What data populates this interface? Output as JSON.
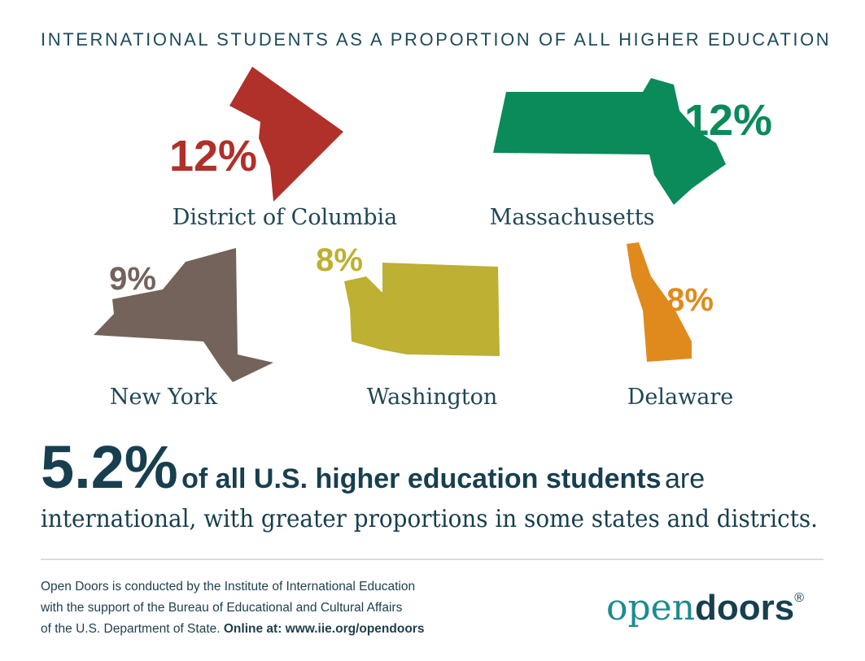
{
  "header": {
    "title": "INTERNATIONAL STUDENTS AS A PROPORTION OF ALL HIGHER EDUCATION"
  },
  "states": [
    {
      "name": "District of Columbia",
      "percent": "12%",
      "color": "#b0302a"
    },
    {
      "name": "Massachusetts",
      "percent": "12%",
      "color": "#0b8a5a"
    },
    {
      "name": "New York",
      "percent": "9%",
      "color": "#73635b"
    },
    {
      "name": "Washington",
      "percent": "8%",
      "color": "#bdb032"
    },
    {
      "name": "Delaware",
      "percent": "8%",
      "color": "#e08a1e"
    }
  ],
  "headline": {
    "figure": "5.2%",
    "bold": "of all U.S. higher education students",
    "regular": "are",
    "line2": "international, with greater proportions in some states and districts."
  },
  "footer": {
    "lines": [
      "Open Doors is conducted by the Institute of International Education",
      "with the support of the Bureau of Educational and Cultural Affairs",
      "of the U.S. Department of State."
    ],
    "link": "Online at: www.iie.org/opendoors"
  },
  "logo": {
    "open": "open",
    "doors": "doors",
    "mark": "®"
  }
}
